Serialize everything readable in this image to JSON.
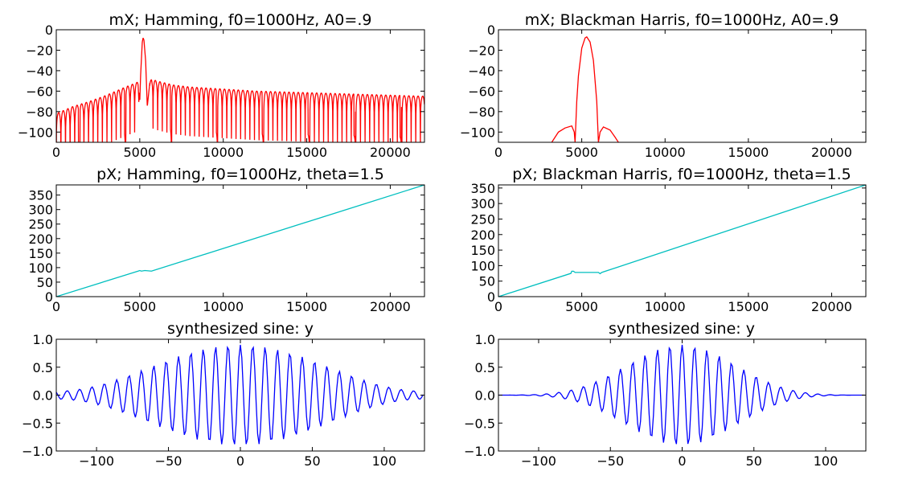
{
  "colors": {
    "magnitude": "#ff0000",
    "phase": "#00bfbf",
    "signal": "#0000ff",
    "axes": "#000000",
    "background": "#ffffff"
  },
  "chart_data": [
    {
      "id": "mx-hamming",
      "type": "line",
      "title": "mX; Hamming, f0=1000Hz, A0=.9",
      "xlabel": "",
      "ylabel": "",
      "xlim": [
        0,
        22050
      ],
      "ylim": [
        -110,
        0
      ],
      "xticks": [
        0,
        5000,
        10000,
        15000,
        20000
      ],
      "xtick_labels": [
        "0",
        "5000",
        "10000",
        "15000",
        "20000"
      ],
      "yticks": [
        0,
        -20,
        -40,
        -60,
        -80,
        -100
      ],
      "ytick_labels": [
        "0",
        "−20",
        "−40",
        "−60",
        "−80",
        "−100"
      ],
      "color": "magnitude",
      "series": [
        {
          "x": [
            0,
            1000,
            2000,
            3000,
            4000,
            4600,
            4900,
            5000,
            5050,
            5150,
            5200,
            5250,
            5350,
            5450,
            5600,
            5700,
            6000,
            7000,
            8000,
            10000,
            12000,
            14000,
            16000,
            18000,
            20000,
            22050
          ],
          "y": [
            -82,
            -75,
            -70,
            -64,
            -57,
            -53,
            -51,
            -70,
            -45,
            -12,
            -8,
            -10,
            -30,
            -75,
            -52,
            -48,
            -50,
            -54,
            -56,
            -58,
            -60,
            -61,
            -62,
            -63,
            -64,
            -65
          ]
        }
      ]
    },
    {
      "id": "mx-blackman-harris",
      "type": "line",
      "title": "mX; Blackman Harris, f0=1000Hz, A0=.9",
      "xlabel": "",
      "ylabel": "",
      "xlim": [
        0,
        22050
      ],
      "ylim": [
        -110,
        0
      ],
      "xticks": [
        0,
        5000,
        10000,
        15000,
        20000
      ],
      "xtick_labels": [
        "0",
        "5000",
        "10000",
        "15000",
        "20000"
      ],
      "yticks": [
        0,
        -20,
        -40,
        -60,
        -80,
        -100
      ],
      "ytick_labels": [
        "0",
        "−20",
        "−40",
        "−60",
        "−80",
        "−100"
      ],
      "color": "magnitude",
      "series": [
        {
          "x": [
            3200,
            3600,
            4000,
            4400,
            4550,
            4600,
            4700,
            4800,
            5000,
            5200,
            5300,
            5500,
            5700,
            5900,
            6000,
            6100,
            6300,
            6700,
            7000,
            7200
          ],
          "y": [
            -110,
            -100,
            -96,
            -94,
            -100,
            -110,
            -70,
            -45,
            -18,
            -8,
            -7,
            -12,
            -30,
            -70,
            -110,
            -100,
            -95,
            -98,
            -105,
            -110
          ]
        }
      ]
    },
    {
      "id": "px-hamming",
      "type": "line",
      "title": "pX; Hamming, f0=1000Hz, theta=1.5",
      "xlabel": "",
      "ylabel": "",
      "xlim": [
        0,
        22050
      ],
      "ylim": [
        0,
        385
      ],
      "xticks": [
        0,
        5000,
        10000,
        15000,
        20000
      ],
      "xtick_labels": [
        "0",
        "5000",
        "10000",
        "15000",
        "20000"
      ],
      "yticks": [
        0,
        50,
        100,
        150,
        200,
        250,
        300,
        350
      ],
      "ytick_labels": [
        "0",
        "50",
        "100",
        "150",
        "200",
        "250",
        "300",
        "350"
      ],
      "color": "phase",
      "series": [
        {
          "x": [
            0,
            4900,
            5000,
            5100,
            5300,
            5700,
            22050
          ],
          "y": [
            0,
            88,
            90,
            88,
            90,
            88,
            385
          ]
        }
      ]
    },
    {
      "id": "px-blackman-harris",
      "type": "line",
      "title": "pX; Blackman Harris, f0=1000Hz, theta=1.5",
      "xlabel": "",
      "ylabel": "",
      "xlim": [
        0,
        22050
      ],
      "ylim": [
        0,
        360
      ],
      "xticks": [
        0,
        5000,
        10000,
        15000,
        20000
      ],
      "xtick_labels": [
        "0",
        "5000",
        "10000",
        "15000",
        "20000"
      ],
      "yticks": [
        0,
        50,
        100,
        150,
        200,
        250,
        300,
        350
      ],
      "ytick_labels": [
        "0",
        "50",
        "100",
        "150",
        "200",
        "250",
        "300",
        "350"
      ],
      "color": "phase",
      "series": [
        {
          "x": [
            0,
            4350,
            4400,
            4500,
            4600,
            6000,
            6100,
            6200,
            22050
          ],
          "y": [
            0,
            75,
            82,
            82,
            78,
            78,
            74,
            78,
            360
          ]
        }
      ]
    },
    {
      "id": "y-hamming",
      "type": "line",
      "title": "synthesized sine: y",
      "xlabel": "",
      "ylabel": "",
      "xlim": [
        -128,
        128
      ],
      "ylim": [
        -1.0,
        1.0
      ],
      "xticks": [
        -100,
        -50,
        0,
        50,
        100
      ],
      "xtick_labels": [
        "−100",
        "−50",
        "0",
        "50",
        "100"
      ],
      "yticks": [
        1.0,
        0.5,
        0.0,
        -0.5,
        -1.0
      ],
      "ytick_labels": [
        "1.0",
        "0.5",
        "0.0",
        "−0.5",
        "−1.0"
      ],
      "color": "signal",
      "signal": {
        "amplitude": 0.9,
        "period_samples": 8.6,
        "window": "hamming",
        "n_samples": 256
      }
    },
    {
      "id": "y-blackman-harris",
      "type": "line",
      "title": "synthesized sine: y",
      "xlabel": "",
      "ylabel": "",
      "xlim": [
        -128,
        128
      ],
      "ylim": [
        -1.0,
        1.0
      ],
      "xticks": [
        -100,
        -50,
        0,
        50,
        100
      ],
      "xtick_labels": [
        "−100",
        "−50",
        "0",
        "50",
        "100"
      ],
      "yticks": [
        1.0,
        0.5,
        0.0,
        -0.5,
        -1.0
      ],
      "ytick_labels": [
        "1.0",
        "0.5",
        "0.0",
        "−0.5",
        "−1.0"
      ],
      "color": "signal",
      "signal": {
        "amplitude": 0.9,
        "period_samples": 8.6,
        "window": "blackman-harris",
        "n_samples": 256
      }
    }
  ]
}
